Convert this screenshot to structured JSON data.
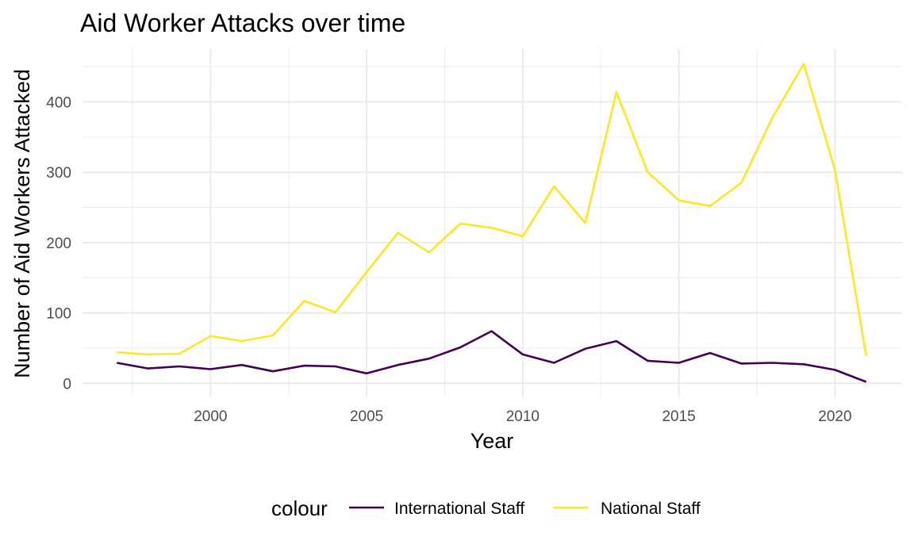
{
  "chart_data": {
    "type": "line",
    "title": "Aid Worker Attacks over time",
    "xlabel": "Year",
    "ylabel": "Number of Aid Workers Attacked",
    "xlim": [
      1997,
      2021
    ],
    "ylim": [
      0,
      455
    ],
    "x_ticks": [
      2000,
      2005,
      2010,
      2015,
      2020
    ],
    "y_ticks": [
      0,
      100,
      200,
      300,
      400
    ],
    "grid": true,
    "legend": {
      "title": "colour",
      "position": "bottom"
    },
    "x": [
      1997,
      1998,
      1999,
      2000,
      2001,
      2002,
      2003,
      2004,
      2005,
      2006,
      2007,
      2008,
      2009,
      2010,
      2011,
      2012,
      2013,
      2014,
      2015,
      2016,
      2017,
      2018,
      2019,
      2020,
      2021
    ],
    "series": [
      {
        "name": "International Staff",
        "color": "#440154",
        "values": [
          29,
          21,
          24,
          20,
          26,
          17,
          25,
          24,
          14,
          26,
          35,
          51,
          74,
          41,
          29,
          49,
          60,
          32,
          29,
          43,
          28,
          29,
          27,
          19,
          2
        ]
      },
      {
        "name": "National Staff",
        "color": "#FDE725",
        "values": [
          44,
          41,
          42,
          67,
          60,
          68,
          117,
          101,
          158,
          214,
          186,
          227,
          221,
          209,
          280,
          228,
          414,
          300,
          260,
          252,
          285,
          378,
          454,
          303,
          39
        ]
      }
    ]
  }
}
